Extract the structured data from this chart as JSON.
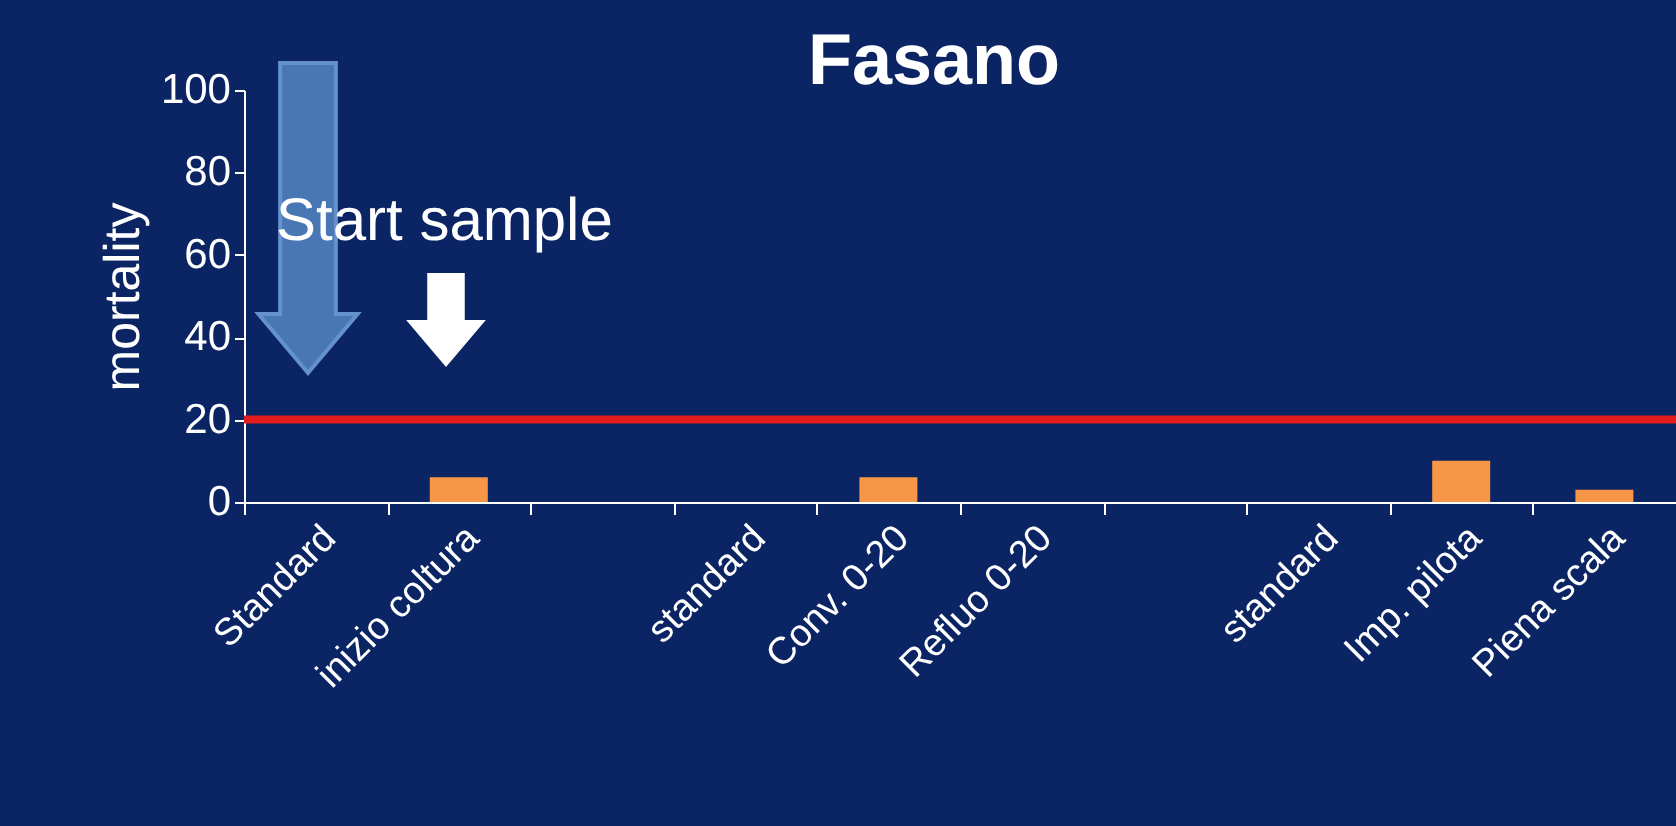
{
  "chart_data": {
    "type": "bar",
    "title": "Fasano",
    "ylabel": "mortality",
    "categories": [
      "Standard",
      "inizio coltura",
      null,
      "standard",
      "Conv. 0-20",
      "Refluo 0-20",
      null,
      "standard",
      "Imp. pilota",
      "Piena scala"
    ],
    "values": [
      null,
      6,
      null,
      null,
      6,
      null,
      null,
      null,
      10,
      3
    ],
    "color": "#f79646",
    "ylim": [
      0,
      100
    ],
    "yticks": [
      0,
      20,
      40,
      60,
      80,
      100
    ],
    "grid": false,
    "ref_lines": [
      {
        "axis": "y",
        "value": 20,
        "color": "#e31b1b"
      }
    ],
    "annotations": [
      "Start sample"
    ]
  }
}
